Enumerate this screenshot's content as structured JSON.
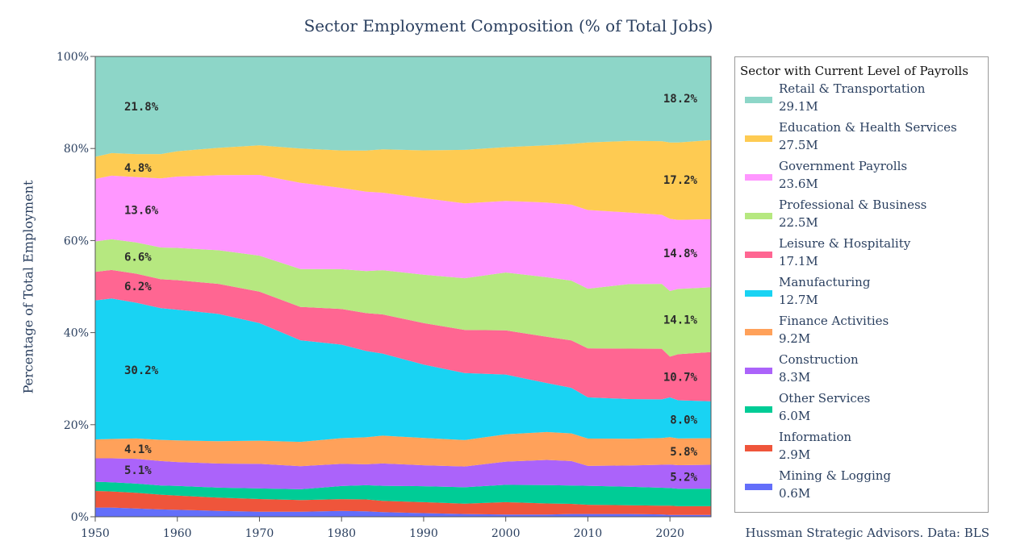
{
  "chart_data": {
    "type": "area",
    "stacked": "percent",
    "title": "Sector Employment Composition (% of Total Jobs)",
    "xlabel": "",
    "ylabel": "Percentage of Total Employment",
    "xlim": [
      1950,
      2025
    ],
    "ylim": [
      0,
      100
    ],
    "x_ticks": [
      1950,
      1960,
      1970,
      1980,
      1990,
      2000,
      2010,
      2020
    ],
    "y_ticks": [
      0,
      20,
      40,
      60,
      80,
      100
    ],
    "y_tick_labels": [
      "0%",
      "20%",
      "40%",
      "60%",
      "80%",
      "100%"
    ],
    "x": [
      1950,
      1952,
      1955,
      1958,
      1960,
      1965,
      1970,
      1975,
      1980,
      1983,
      1985,
      1990,
      1995,
      2000,
      2005,
      2008,
      2010,
      2015,
      2019,
      2020,
      2021,
      2025
    ],
    "series": [
      {
        "name": "Mining & Logging",
        "current": "0.6M",
        "color": "#636efa",
        "values": [
          2.0,
          2.0,
          1.8,
          1.6,
          1.5,
          1.3,
          1.1,
          1.1,
          1.3,
          1.2,
          1.0,
          0.8,
          0.6,
          0.5,
          0.5,
          0.6,
          0.6,
          0.6,
          0.5,
          0.4,
          0.4,
          0.4
        ]
      },
      {
        "name": "Information",
        "current": "2.9M",
        "color": "#ef553b",
        "values": [
          3.6,
          3.5,
          3.4,
          3.2,
          3.1,
          2.9,
          2.8,
          2.6,
          2.6,
          2.6,
          2.5,
          2.4,
          2.3,
          2.7,
          2.4,
          2.2,
          2.0,
          1.9,
          1.9,
          2.0,
          1.9,
          1.9
        ]
      },
      {
        "name": "Other Services",
        "current": "6.0M",
        "color": "#00cc96",
        "values": [
          2.0,
          2.0,
          2.0,
          2.0,
          2.1,
          2.2,
          2.3,
          2.4,
          2.9,
          3.1,
          3.3,
          3.5,
          3.6,
          3.8,
          4.0,
          4.0,
          4.1,
          4.0,
          3.9,
          3.8,
          3.8,
          3.8
        ]
      },
      {
        "name": "Construction",
        "current": "8.3M",
        "color": "#ab63fa",
        "values": [
          5.1,
          5.2,
          5.4,
          5.3,
          5.2,
          5.3,
          5.4,
          5.1,
          4.9,
          4.6,
          4.9,
          4.6,
          4.6,
          5.1,
          5.5,
          5.3,
          4.3,
          4.6,
          5.0,
          5.1,
          5.1,
          5.2
        ]
      },
      {
        "name": "Finance Activities",
        "current": "9.2M",
        "color": "#ffa15a",
        "values": [
          4.1,
          4.2,
          4.4,
          4.6,
          4.7,
          4.9,
          5.1,
          5.4,
          5.7,
          5.9,
          6.1,
          6.0,
          5.8,
          6.0,
          6.1,
          6.0,
          5.9,
          5.8,
          5.8,
          5.9,
          5.8,
          5.8
        ]
      },
      {
        "name": "Manufacturing",
        "current": "12.7M",
        "color": "#19d3f3",
        "values": [
          30.2,
          30.5,
          29.5,
          28.6,
          28.4,
          28.0,
          25.8,
          22.5,
          20.7,
          18.9,
          18.0,
          16.1,
          14.8,
          13.1,
          10.7,
          9.9,
          8.9,
          8.6,
          8.4,
          8.6,
          8.3,
          8.0
        ]
      },
      {
        "name": "Leisure & Hospitality",
        "current": "17.1M",
        "color": "#ff6692",
        "values": [
          6.2,
          6.2,
          6.3,
          6.3,
          6.4,
          6.6,
          6.9,
          7.4,
          7.9,
          8.3,
          8.6,
          9.1,
          9.5,
          9.7,
          10.1,
          10.3,
          10.6,
          10.9,
          11.0,
          8.8,
          10.0,
          10.7
        ]
      },
      {
        "name": "Professional & Business",
        "current": "22.5M",
        "color": "#b6e880",
        "values": [
          6.6,
          6.7,
          6.8,
          6.9,
          7.0,
          7.4,
          7.9,
          8.4,
          8.8,
          9.2,
          9.7,
          10.6,
          11.4,
          12.7,
          13.0,
          13.0,
          12.9,
          14.0,
          14.1,
          14.2,
          14.2,
          14.1
        ]
      },
      {
        "name": "Government Payrolls",
        "current": "23.6M",
        "color": "#ff97ff",
        "values": [
          13.6,
          13.8,
          14.2,
          15.0,
          15.5,
          16.5,
          17.7,
          19.1,
          18.0,
          17.4,
          17.0,
          16.8,
          16.5,
          15.7,
          16.3,
          16.5,
          17.0,
          15.5,
          15.0,
          15.6,
          15.0,
          14.8
        ]
      },
      {
        "name": "Education & Health Services",
        "current": "27.5M",
        "color": "#fecb52",
        "values": [
          4.8,
          4.9,
          5.0,
          5.3,
          5.5,
          6.0,
          6.5,
          7.6,
          8.3,
          9.0,
          9.5,
          10.5,
          11.8,
          11.8,
          12.5,
          13.2,
          14.6,
          15.5,
          16.0,
          16.5,
          16.8,
          17.2
        ]
      },
      {
        "name": "Retail & Transportation",
        "current": "29.1M",
        "color": "#8dd6c8",
        "values": [
          21.8,
          21.0,
          21.2,
          21.2,
          20.6,
          20.1,
          19.5,
          20.4,
          20.8,
          20.6,
          20.4,
          20.6,
          20.6,
          19.9,
          19.4,
          19.0,
          18.6,
          18.3,
          18.4,
          18.6,
          18.7,
          18.2
        ]
      }
    ],
    "annotations": {
      "start": [
        {
          "series": "Retail & Transportation",
          "text": "21.8%"
        },
        {
          "series": "Education & Health Services",
          "text": "4.8%"
        },
        {
          "series": "Government Payrolls",
          "text": "13.6%"
        },
        {
          "series": "Professional & Business",
          "text": "6.6%"
        },
        {
          "series": "Leisure & Hospitality",
          "text": "6.2%"
        },
        {
          "series": "Manufacturing",
          "text": "30.2%"
        },
        {
          "series": "Finance Activities",
          "text": "4.1%"
        },
        {
          "series": "Construction",
          "text": "5.1%"
        }
      ],
      "end": [
        {
          "series": "Retail & Transportation",
          "text": "18.2%"
        },
        {
          "series": "Education & Health Services",
          "text": "17.2%"
        },
        {
          "series": "Government Payrolls",
          "text": "14.8%"
        },
        {
          "series": "Professional & Business",
          "text": "14.1%"
        },
        {
          "series": "Leisure & Hospitality",
          "text": "10.7%"
        },
        {
          "series": "Manufacturing",
          "text": "8.0%"
        },
        {
          "series": "Finance Activities",
          "text": "5.8%"
        },
        {
          "series": "Construction",
          "text": "5.2%"
        }
      ]
    },
    "legend_title": "Sector with Current Level of Payrolls",
    "legend_position": "right",
    "source_note": "Hussman Strategic Advisors. Data: BLS"
  }
}
